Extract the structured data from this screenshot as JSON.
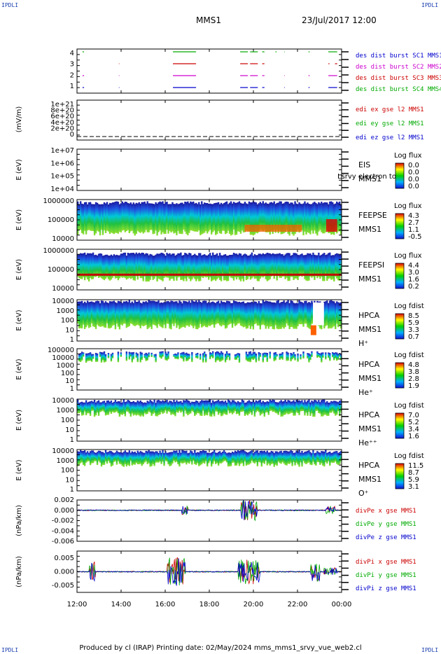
{
  "corner_label": "IPDLI",
  "header": {
    "mission": "MMS1",
    "date": "23/Jul/2017 12:00"
  },
  "footer": "Produced by cl (IRAP)   Printing date: 02/May/2024   mms_mms1_srvy_vue_web2.cl",
  "time_axis": {
    "ticks": [
      "12:00",
      "14:00",
      "16:00",
      "18:00",
      "20:00",
      "22:00",
      "00:00"
    ],
    "range_hours": [
      12,
      24
    ]
  },
  "chart_data": [
    {
      "type": "line",
      "name": "burst-availability",
      "yticks": [
        "1",
        "2",
        "3",
        "4"
      ],
      "series": [
        {
          "name": "des dist burst SC1 MMS1",
          "color": "#0000cc",
          "level": 1,
          "intervals": [
            [
              12.25,
              12.32
            ],
            [
              13.9,
              13.92
            ],
            [
              16.35,
              17.4
            ],
            [
              19.4,
              19.75
            ],
            [
              19.85,
              20.2
            ],
            [
              20.4,
              20.5
            ],
            [
              21.4,
              21.42
            ],
            [
              22.5,
              22.55
            ],
            [
              23.4,
              23.8
            ]
          ]
        },
        {
          "name": "des dist burst SC2 MMS2",
          "color": "#cc00cc",
          "level": 2,
          "intervals": [
            [
              12.25,
              12.32
            ],
            [
              13.9,
              13.92
            ],
            [
              16.35,
              17.4
            ],
            [
              19.4,
              19.75
            ],
            [
              19.85,
              20.2
            ],
            [
              20.4,
              20.5
            ],
            [
              21.4,
              21.42
            ],
            [
              22.5,
              22.55
            ],
            [
              23.4,
              23.8
            ]
          ]
        },
        {
          "name": "des dist burst SC3 MMS3",
          "color": "#cc0000",
          "level": 3,
          "intervals": [
            [
              13.9,
              13.92
            ],
            [
              16.35,
              17.4
            ],
            [
              19.4,
              19.75
            ],
            [
              19.85,
              20.2
            ],
            [
              20.4,
              20.5
            ],
            [
              23.4,
              23.45
            ],
            [
              23.7,
              23.8
            ]
          ]
        },
        {
          "name": "des dist burst SC4 MMS4",
          "color": "#00aa00",
          "level": 4,
          "intervals": [
            [
              12.25,
              12.32
            ],
            [
              16.35,
              17.4
            ],
            [
              19.4,
              19.75
            ],
            [
              19.85,
              20.2
            ],
            [
              20.4,
              20.5
            ],
            [
              21.0,
              21.05
            ],
            [
              21.4,
              21.42
            ],
            [
              22.5,
              22.55
            ],
            [
              23.4,
              23.8
            ]
          ]
        }
      ]
    },
    {
      "type": "line",
      "name": "edi-e-field",
      "ylabel": "(mV/m)",
      "yticks": [
        "1e+21",
        "8e+20",
        "6e+20",
        "4e+20",
        "2e+20",
        "0"
      ],
      "series": [
        {
          "name": "edi ex gse l2 MMS1",
          "color": "#cc0000"
        },
        {
          "name": "edi ey gse l2 MMS1",
          "color": "#00aa00"
        },
        {
          "name": "edi ez gse l2 MMS1",
          "color": "#0000cc"
        }
      ]
    },
    {
      "type": "heatmap",
      "name": "eis",
      "ylabel": "E (eV)",
      "yticks": [
        "1e+07",
        "1e+06",
        "1e+05",
        "1e+04"
      ],
      "labels": [
        "EIS",
        "MMS1"
      ],
      "overlay_text": "Lsrvy electron to",
      "colorbar": {
        "title": "Log flux",
        "ticks": [
          "0.0",
          "0.0",
          "0.0",
          "0.0"
        ]
      },
      "empty": true
    },
    {
      "type": "heatmap",
      "name": "feeps-electron",
      "ylabel": "E (eV)",
      "yticks": [
        "1000000",
        "100000",
        "10000"
      ],
      "labels": [
        "FEEPSE",
        "MMS1"
      ],
      "colorbar": {
        "title": "Log flux",
        "ticks": [
          "4.3",
          "2.7",
          "1.1",
          "-0.5"
        ]
      },
      "fill": {
        "top": 0.08,
        "bottom": 0.77
      }
    },
    {
      "type": "heatmap",
      "name": "feeps-ion",
      "ylabel": "E (eV)",
      "yticks": [
        "1000000",
        "100000",
        "10000"
      ],
      "labels": [
        "FEEPSI",
        "MMS1"
      ],
      "colorbar": {
        "title": "Log flux",
        "ticks": [
          "4.4",
          "3.0",
          "1.6",
          "0.2"
        ]
      },
      "fill": {
        "top": 0.12,
        "bottom": 0.68
      }
    },
    {
      "type": "heatmap",
      "name": "hpca-h",
      "ylabel": "E (eV)",
      "yticks": [
        "10000",
        "1000",
        "100",
        "10",
        "1"
      ],
      "labels": [
        "HPCA",
        "MMS1",
        "H⁺"
      ],
      "colorbar": {
        "title": "Log fdist",
        "ticks": [
          "8.5",
          "5.9",
          "3.3",
          "0.7"
        ]
      },
      "fill": {
        "top": 0.05,
        "bottom": 0.6
      }
    },
    {
      "type": "heatmap",
      "name": "hpca-he",
      "ylabel": "E (eV)",
      "yticks": [
        "100000",
        "10000",
        "1000",
        "100",
        "10",
        "1"
      ],
      "labels": [
        "HPCA",
        "MMS1",
        "He⁺"
      ],
      "colorbar": {
        "title": "Log fdist",
        "ticks": [
          "4.8",
          "3.8",
          "2.8",
          "1.9"
        ]
      },
      "fill": {
        "top": 0.1,
        "bottom": 0.22
      }
    },
    {
      "type": "heatmap",
      "name": "hpca-he2",
      "ylabel": "E (eV)",
      "yticks": [
        "10000",
        "1000",
        "100",
        "10",
        "1"
      ],
      "labels": [
        "HPCA",
        "MMS1",
        "He⁺⁺"
      ],
      "colorbar": {
        "title": "Log fdist",
        "ticks": [
          "7.0",
          "5.2",
          "3.4",
          "1.6"
        ]
      },
      "fill": {
        "top": 0.05,
        "bottom": 0.3
      }
    },
    {
      "type": "heatmap",
      "name": "hpca-o",
      "ylabel": "E (eV)",
      "yticks": [
        "10000",
        "1000",
        "100",
        "10",
        "1"
      ],
      "labels": [
        "HPCA",
        "MMS1",
        "O⁺"
      ],
      "colorbar": {
        "title": "Log fdist",
        "ticks": [
          "11.5",
          "8.7",
          "5.9",
          "3.1"
        ]
      },
      "fill": {
        "top": 0.05,
        "bottom": 0.3
      }
    },
    {
      "type": "line",
      "name": "divpe",
      "ylabel": "(nPa/km)",
      "yticks": [
        "0.002",
        "0.000",
        "-0.002",
        "-0.004",
        "-0.006"
      ],
      "ylim": [
        -0.006,
        0.002
      ],
      "series": [
        {
          "name": "divPe x gse MMS1",
          "color": "#cc0000"
        },
        {
          "name": "divPe y gse MMS1",
          "color": "#00aa00"
        },
        {
          "name": "divPe z gse MMS1",
          "color": "#0000cc"
        }
      ]
    },
    {
      "type": "line",
      "name": "divpi",
      "ylabel": "(nPa/km)",
      "yticks": [
        "0.005",
        "0.000",
        "-0.005"
      ],
      "ylim": [
        -0.0075,
        0.0075
      ],
      "series": [
        {
          "name": "divPi x gse MMS1",
          "color": "#cc0000"
        },
        {
          "name": "divPi y gse MMS1",
          "color": "#00aa00"
        },
        {
          "name": "divPi z gse MMS1",
          "color": "#0000cc"
        }
      ]
    }
  ]
}
